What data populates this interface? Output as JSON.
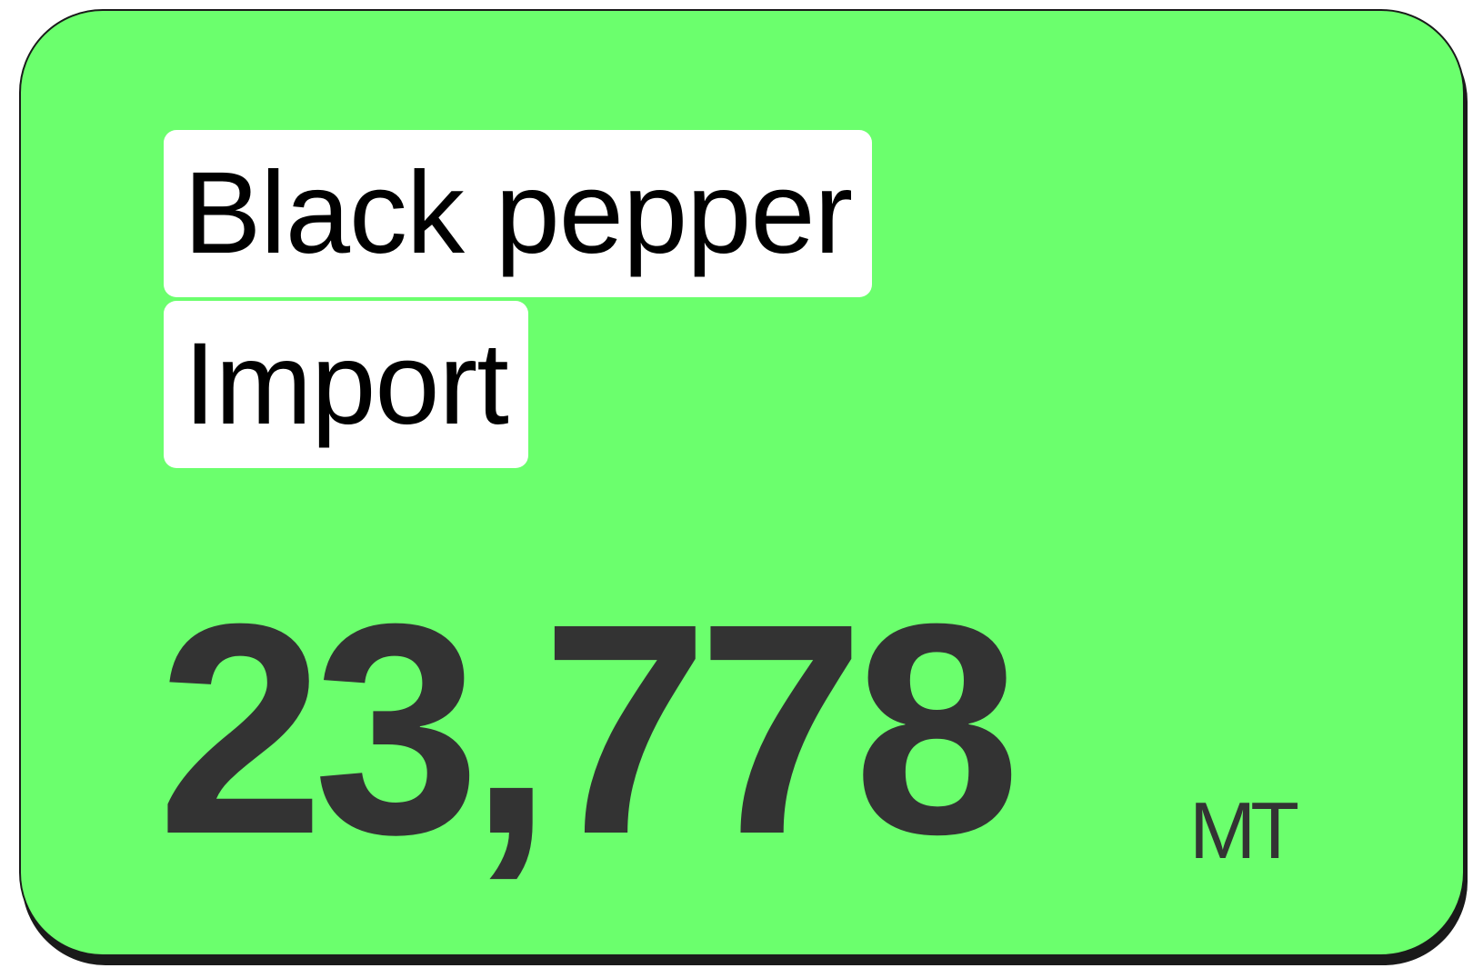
{
  "card": {
    "title": [
      "Black pepper",
      "Import"
    ],
    "value": "23,778",
    "unit": "MT"
  }
}
